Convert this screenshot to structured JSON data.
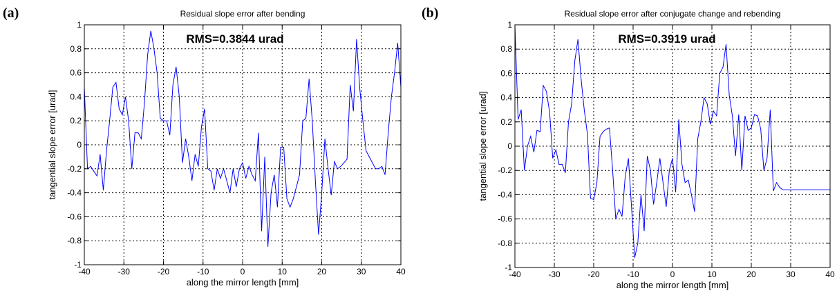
{
  "panels": [
    {
      "letter": "(a)",
      "chart_data": {
        "type": "line",
        "title": "Residual slope error after bending",
        "annotation": "RMS=0.3844 urad",
        "xlabel": "along the mirror length [mm]",
        "ylabel": "tangential slope error [urad]",
        "xlim": [
          -40,
          40
        ],
        "ylim": [
          -1,
          1
        ],
        "xticks": [
          -40,
          -30,
          -20,
          -10,
          0,
          10,
          20,
          30,
          40
        ],
        "yticks": [
          -1,
          -0.8,
          -0.6,
          -0.4,
          -0.2,
          0,
          0.2,
          0.4,
          0.6,
          0.8,
          1
        ],
        "xtick_labels": [
          "-40",
          "-30",
          "-20",
          "-10",
          "0",
          "10",
          "20",
          "30",
          "40"
        ],
        "ytick_labels": [
          "-1",
          "-0.8",
          "-0.6",
          "-0.4",
          "-0.2",
          "0",
          "0.2",
          "0.4",
          "0.6",
          "0.8",
          "1"
        ],
        "grid": true,
        "line_color": "#0000ff",
        "series": [
          {
            "x": [
              -40,
              -39.2,
              -38.4,
              -37.6,
              -36.8,
              -36,
              -35.2,
              -34.4,
              -33.6,
              -32.8,
              -32,
              -31.2,
              -30.4,
              -29.6,
              -28.8,
              -28,
              -27.2,
              -26.4,
              -25.6,
              -24.8,
              -24,
              -23.2,
              -22.4,
              -21.6,
              -20.8,
              -20,
              -19.2,
              -18.4,
              -17.6,
              -16.8,
              -16,
              -15.2,
              -14.4,
              -13.6,
              -12.8,
              -12,
              -11.2,
              -10.4,
              -9.6,
              -8.8,
              -8,
              -7.2,
              -6.4,
              -5.6,
              -4.8,
              -4,
              -3.2,
              -2.4,
              -1.6,
              -0.8,
              0,
              0.8,
              1.6,
              2.4,
              3.2,
              4,
              4.8,
              5.6,
              6.4,
              7.2,
              8,
              8.8,
              9.6,
              10.4,
              11.2,
              12,
              12.8,
              13.6,
              14.4,
              15.2,
              16,
              16.8,
              17.6,
              18.4,
              19.2,
              20,
              20.8,
              21.6,
              22.4,
              23.2,
              24,
              24.8,
              25.6,
              26.4,
              27.2,
              28,
              28.8,
              29.6,
              30.4,
              31.2,
              32,
              32.8,
              33.6,
              34.4,
              35.2,
              36,
              36.8,
              37.6,
              38.4,
              39.2,
              40
            ],
            "y": [
              0.48,
              -0.2,
              -0.18,
              -0.22,
              -0.26,
              -0.08,
              -0.38,
              -0.05,
              0.2,
              0.48,
              0.52,
              0.3,
              0.25,
              0.4,
              0.2,
              -0.2,
              0.1,
              0.1,
              0.05,
              0.35,
              0.75,
              0.95,
              0.8,
              0.6,
              0.22,
              0.2,
              0.2,
              0.08,
              0.5,
              0.65,
              0.4,
              -0.15,
              0.05,
              -0.1,
              -0.3,
              -0.08,
              -0.18,
              0.15,
              0.3,
              -0.2,
              -0.22,
              -0.38,
              -0.2,
              -0.28,
              -0.2,
              -0.3,
              -0.4,
              -0.2,
              -0.35,
              -0.2,
              -0.15,
              -0.28,
              -0.18,
              -0.25,
              -0.3,
              0.1,
              -0.72,
              -0.1,
              -0.85,
              -0.4,
              -0.25,
              -0.52,
              -0.02,
              -0.02,
              -0.45,
              -0.52,
              -0.45,
              -0.35,
              -0.25,
              0.2,
              0.22,
              0.55,
              0.2,
              -0.3,
              -0.75,
              -0.4,
              0.05,
              -0.2,
              -0.42,
              -0.14,
              -0.2,
              -0.18,
              -0.15,
              -0.12,
              0.5,
              0.28,
              0.88,
              0.47,
              0.2,
              -0.05,
              -0.1,
              -0.15,
              -0.2,
              -0.2,
              -0.18,
              -0.25,
              0.1,
              0.4,
              0.6,
              0.85,
              0.48
            ]
          }
        ]
      }
    },
    {
      "letter": "(b)",
      "chart_data": {
        "type": "line",
        "title": "Residual slope error after conjugate change and rebending",
        "annotation": "RMS=0.3919 urad",
        "xlabel": "along the mirror length [mm]",
        "ylabel": "tangential slope error [urad]",
        "xlim": [
          -40,
          40
        ],
        "ylim": [
          -1,
          1
        ],
        "xticks": [
          -40,
          -30,
          -20,
          -10,
          0,
          10,
          20,
          30,
          40
        ],
        "yticks": [
          -1,
          -0.8,
          -0.6,
          -0.4,
          -0.2,
          0,
          0.2,
          0.4,
          0.6,
          0.8,
          1
        ],
        "xtick_labels": [
          "-40",
          "-30",
          "-20",
          "-10",
          "0",
          "10",
          "20",
          "30",
          "40"
        ],
        "ytick_labels": [
          "-1",
          "-0.8",
          "-0.6",
          "-0.4",
          "-0.2",
          "0",
          "0.2",
          "0.4",
          "0.6",
          "0.8",
          "1"
        ],
        "grid": true,
        "line_color": "#0000ff",
        "series": [
          {
            "x": [
              -40,
              -39.2,
              -38.4,
              -37.6,
              -36.8,
              -36,
              -35.2,
              -34.4,
              -33.6,
              -32.8,
              -32,
              -31.2,
              -30.4,
              -29.6,
              -28.8,
              -28,
              -27.2,
              -26.4,
              -25.6,
              -24.8,
              -24,
              -23.2,
              -22.4,
              -21.6,
              -20.8,
              -20,
              -19.2,
              -18.4,
              -17.6,
              -16.8,
              -16,
              -15.2,
              -14.4,
              -13.6,
              -12.8,
              -12,
              -11.2,
              -10.4,
              -9.6,
              -8.8,
              -8,
              -7.2,
              -6.4,
              -5.6,
              -4.8,
              -4,
              -3.2,
              -2.4,
              -1.6,
              -0.8,
              0,
              0.8,
              1.6,
              2.4,
              3.2,
              4,
              4.8,
              5.6,
              6.4,
              7.2,
              8,
              8.8,
              9.6,
              10.4,
              11.2,
              12,
              12.8,
              13.6,
              14.4,
              15.2,
              16,
              16.8,
              17.6,
              18.4,
              19.2,
              20,
              20.8,
              21.6,
              22.4,
              23.2,
              24,
              24.8,
              25.6,
              26.4,
              27.2,
              28,
              28.8,
              29.6,
              30.4,
              31.2,
              32,
              32.8,
              33.6,
              34.4,
              35.2,
              36,
              36.8,
              37.6,
              38.4,
              39.2,
              40
            ],
            "y": [
              1.0,
              0.22,
              0.3,
              -0.2,
              0.0,
              0.08,
              -0.05,
              0.13,
              0.12,
              0.5,
              0.45,
              0.28,
              -0.1,
              -0.03,
              -0.15,
              -0.15,
              -0.22,
              0.2,
              0.35,
              0.7,
              0.88,
              0.55,
              0.3,
              0.1,
              -0.43,
              -0.44,
              -0.3,
              0.08,
              0.12,
              0.14,
              0.15,
              -0.2,
              -0.6,
              -0.52,
              -0.58,
              -0.25,
              -0.1,
              -0.5,
              -0.92,
              -0.8,
              -0.4,
              -0.7,
              -0.08,
              -0.2,
              -0.48,
              -0.3,
              -0.1,
              -0.3,
              -0.5,
              -0.2,
              -0.1,
              -0.38,
              0.22,
              -0.15,
              -0.3,
              -0.28,
              -0.4,
              -0.54,
              0.06,
              0.2,
              0.4,
              0.35,
              0.18,
              0.29,
              0.25,
              0.6,
              0.65,
              0.84,
              0.42,
              0.25,
              -0.08,
              0.26,
              -0.2,
              0.25,
              0.13,
              0.15,
              0.26,
              0.25,
              0.14,
              -0.2,
              -0.1,
              0.3,
              -0.37,
              -0.3,
              -0.34,
              -0.36,
              -0.36,
              -0.36,
              -0.36,
              -0.36,
              -0.36,
              -0.36,
              -0.36,
              -0.36,
              -0.36,
              -0.36,
              -0.36,
              -0.36,
              -0.36,
              -0.36,
              -0.36
            ]
          }
        ]
      }
    }
  ]
}
